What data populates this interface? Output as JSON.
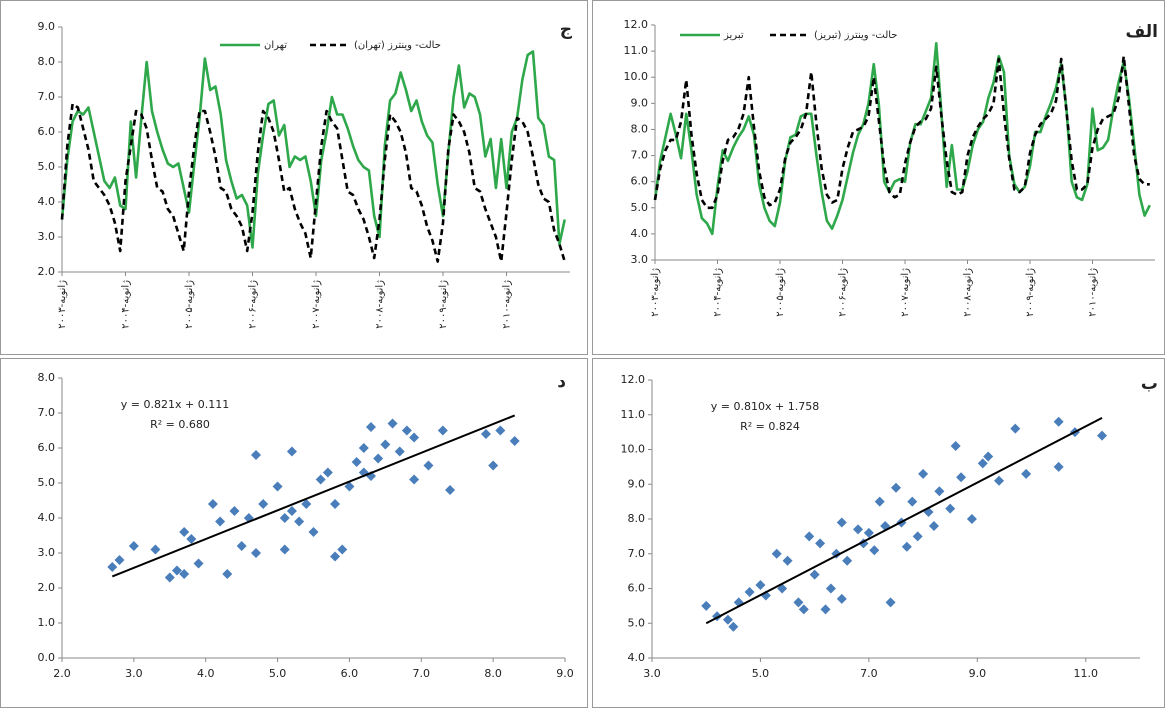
{
  "chart_data": [
    {
      "type": "line",
      "title": "ج",
      "categories": [
        "ژانویه-۲۰۰۳",
        null,
        null,
        null,
        null,
        null,
        null,
        null,
        null,
        null,
        null,
        null,
        "ژانویه-۲۰۰۴",
        null,
        null,
        null,
        null,
        null,
        null,
        null,
        null,
        null,
        null,
        null,
        "ژانویه-۲۰۰۵",
        null,
        null,
        null,
        null,
        null,
        null,
        null,
        null,
        null,
        null,
        null,
        "ژانویه-۲۰۰۶",
        null,
        null,
        null,
        null,
        null,
        null,
        null,
        null,
        null,
        null,
        null,
        "ژانویه-۲۰۰۷",
        null,
        null,
        null,
        null,
        null,
        null,
        null,
        null,
        null,
        null,
        null,
        "ژانویه-۲۰۰۸",
        null,
        null,
        null,
        null,
        null,
        null,
        null,
        null,
        null,
        null,
        null,
        "ژانویه-۲۰۰۹",
        null,
        null,
        null,
        null,
        null,
        null,
        null,
        null,
        null,
        null,
        null,
        "ژانویه-۲۰۱۰",
        null,
        null,
        null,
        null,
        null,
        null,
        null,
        null,
        null,
        null,
        null
      ],
      "series": [
        {
          "name": "تهران",
          "color": "#2ea84a",
          "line_style": "solid",
          "values": [
            3.5,
            5.2,
            6.3,
            6.6,
            6.5,
            6.7,
            6.0,
            5.3,
            4.6,
            4.4,
            4.7,
            3.9,
            3.8,
            6.3,
            4.7,
            6.4,
            8.0,
            6.6,
            6.0,
            5.5,
            5.1,
            5.0,
            5.1,
            4.4,
            3.7,
            5.1,
            6.4,
            8.1,
            7.2,
            7.3,
            6.5,
            5.2,
            4.6,
            4.1,
            4.2,
            3.9,
            2.7,
            4.8,
            5.9,
            6.8,
            6.9,
            5.9,
            6.2,
            5.0,
            5.3,
            5.2,
            5.3,
            4.6,
            3.6,
            5.2,
            6.0,
            7.0,
            6.5,
            6.5,
            6.1,
            5.6,
            5.2,
            5.0,
            4.9,
            3.6,
            3.0,
            5.6,
            6.9,
            7.1,
            7.7,
            7.2,
            6.6,
            6.9,
            6.3,
            5.9,
            5.7,
            4.5,
            3.6,
            5.4,
            7.0,
            7.9,
            6.7,
            7.1,
            7.0,
            6.5,
            5.3,
            5.8,
            4.4,
            5.8,
            4.4,
            6.0,
            6.4,
            7.5,
            8.2,
            8.3,
            6.4,
            6.2,
            5.3,
            5.2,
            2.8,
            3.5
          ]
        },
        {
          "name": "حالت- وینترز (تهران)",
          "color": "#000000",
          "line_style": "dashed",
          "values": [
            3.5,
            5.6,
            6.8,
            6.7,
            6.1,
            5.5,
            4.6,
            4.4,
            4.2,
            3.9,
            3.4,
            2.6,
            4.6,
            5.6,
            6.6,
            6.5,
            6.1,
            5.2,
            4.4,
            4.3,
            3.8,
            3.6,
            3.1,
            2.6,
            4.3,
            5.6,
            6.6,
            6.6,
            6.0,
            5.3,
            4.4,
            4.3,
            3.8,
            3.6,
            3.3,
            2.6,
            3.7,
            5.4,
            6.6,
            6.4,
            6.0,
            5.2,
            4.3,
            4.4,
            3.8,
            3.4,
            3.1,
            2.4,
            4.0,
            5.6,
            6.6,
            6.3,
            6.1,
            5.2,
            4.3,
            4.2,
            3.8,
            3.5,
            3.0,
            2.4,
            3.5,
            5.2,
            6.5,
            6.3,
            6.0,
            5.4,
            4.4,
            4.3,
            3.9,
            3.3,
            2.9,
            2.3,
            3.4,
            5.5,
            6.5,
            6.3,
            6.0,
            5.4,
            4.4,
            4.3,
            3.8,
            3.4,
            3.0,
            2.3,
            3.7,
            5.2,
            6.4,
            6.3,
            6.0,
            5.3,
            4.5,
            4.1,
            4.0,
            3.2,
            2.8,
            2.3
          ]
        }
      ],
      "ylim": [
        2,
        9
      ],
      "yticks": [
        {
          "value": 2,
          "label": "2.0"
        },
        {
          "value": 3,
          "label": "3.0"
        },
        {
          "value": 4,
          "label": "4.0"
        },
        {
          "value": 5,
          "label": "5.0"
        },
        {
          "value": 6,
          "label": "6.0"
        },
        {
          "value": 7,
          "label": "7.0"
        },
        {
          "value": 8,
          "label": "8.0"
        },
        {
          "value": 9,
          "label": "9.0"
        }
      ],
      "grid": false,
      "legend": "top"
    },
    {
      "type": "line",
      "title": "الف",
      "categories": [
        "ژانویه-۲۰۰۳",
        null,
        null,
        null,
        null,
        null,
        null,
        null,
        null,
        null,
        null,
        null,
        "ژانویه-۲۰۰۴",
        null,
        null,
        null,
        null,
        null,
        null,
        null,
        null,
        null,
        null,
        null,
        "ژانویه-۲۰۰۵",
        null,
        null,
        null,
        null,
        null,
        null,
        null,
        null,
        null,
        null,
        null,
        "ژانویه-۲۰۰۶",
        null,
        null,
        null,
        null,
        null,
        null,
        null,
        null,
        null,
        null,
        null,
        "ژانویه-۲۰۰۷",
        null,
        null,
        null,
        null,
        null,
        null,
        null,
        null,
        null,
        null,
        null,
        "ژانویه-۲۰۰۸",
        null,
        null,
        null,
        null,
        null,
        null,
        null,
        null,
        null,
        null,
        null,
        "ژانویه-۲۰۰۹",
        null,
        null,
        null,
        null,
        null,
        null,
        null,
        null,
        null,
        null,
        null,
        "ژانویه-۲۰۱۰",
        null,
        null,
        null,
        null,
        null,
        null,
        null,
        null,
        null,
        null,
        null
      ],
      "series": [
        {
          "name": "تبریز",
          "color": "#2ea84a",
          "line_style": "solid",
          "values": [
            5.3,
            6.8,
            7.7,
            8.6,
            7.8,
            6.9,
            8.6,
            7.2,
            5.5,
            4.6,
            4.4,
            4.0,
            5.8,
            7.2,
            6.8,
            7.3,
            7.7,
            8.0,
            8.5,
            7.8,
            5.9,
            5.0,
            4.5,
            4.3,
            5.2,
            6.8,
            7.7,
            7.8,
            8.5,
            8.6,
            8.6,
            7.0,
            5.6,
            4.5,
            4.2,
            4.7,
            5.3,
            6.2,
            7.1,
            7.8,
            8.2,
            9.0,
            10.5,
            8.9,
            6.0,
            5.6,
            6.0,
            6.1,
            6.0,
            7.5,
            8.2,
            8.2,
            8.7,
            9.2,
            11.3,
            8.6,
            5.8,
            7.4,
            5.7,
            5.7,
            6.4,
            7.4,
            8.0,
            8.3,
            9.2,
            9.8,
            10.8,
            10.2,
            7.0,
            5.9,
            5.6,
            5.8,
            6.6,
            7.9,
            7.9,
            8.5,
            9.0,
            9.6,
            10.5,
            8.8,
            6.0,
            5.4,
            5.3,
            5.9,
            8.8,
            7.2,
            7.3,
            7.6,
            8.8,
            9.8,
            10.6,
            9.2,
            7.4,
            5.5,
            4.7,
            5.1
          ]
        },
        {
          "name": "حالت- وینترز (تبریز)",
          "color": "#000000",
          "line_style": "dashed",
          "values": [
            5.3,
            6.5,
            7.2,
            7.6,
            7.6,
            8.3,
            9.9,
            7.8,
            6.3,
            5.3,
            5.0,
            5.0,
            5.5,
            6.8,
            7.6,
            7.7,
            8.0,
            8.6,
            10.0,
            8.1,
            6.4,
            5.4,
            5.1,
            5.2,
            5.7,
            6.9,
            7.5,
            7.7,
            8.0,
            8.6,
            10.2,
            8.2,
            6.5,
            5.5,
            5.2,
            5.3,
            6.5,
            7.3,
            7.9,
            8.0,
            8.1,
            8.5,
            10.0,
            8.3,
            6.6,
            5.6,
            5.4,
            5.5,
            6.7,
            7.5,
            8.1,
            8.3,
            8.4,
            8.8,
            10.4,
            8.5,
            6.8,
            5.6,
            5.5,
            5.6,
            7.0,
            7.7,
            8.1,
            8.4,
            8.6,
            9.0,
            10.7,
            8.6,
            6.9,
            5.7,
            5.6,
            5.8,
            7.1,
            7.8,
            8.2,
            8.4,
            8.6,
            9.1,
            10.7,
            8.7,
            6.8,
            5.7,
            5.7,
            5.9,
            7.3,
            8.0,
            8.4,
            8.5,
            8.6,
            9.2,
            10.8,
            8.9,
            7.0,
            6.1,
            5.9,
            5.9
          ]
        }
      ],
      "ylim": [
        3,
        12
      ],
      "yticks": [
        {
          "value": 3,
          "label": "3.0"
        },
        {
          "value": 4,
          "label": "4.0"
        },
        {
          "value": 5,
          "label": "5.0"
        },
        {
          "value": 6,
          "label": "6.0"
        },
        {
          "value": 7,
          "label": "7.0"
        },
        {
          "value": 8,
          "label": "8.0"
        },
        {
          "value": 9,
          "label": "9.0"
        },
        {
          "value": 10,
          "label": "10.0"
        },
        {
          "value": 11,
          "label": "11.0"
        },
        {
          "value": 12,
          "label": "12.0"
        }
      ],
      "grid": false,
      "legend": "top"
    },
    {
      "type": "scatter",
      "title": "د",
      "color": "#4a7ebb",
      "x": [
        2.7,
        2.8,
        3.0,
        3.3,
        3.5,
        3.6,
        3.7,
        3.7,
        3.8,
        3.9,
        4.1,
        4.2,
        4.3,
        4.4,
        4.5,
        4.6,
        4.7,
        4.7,
        4.8,
        5.0,
        5.1,
        5.1,
        5.2,
        5.2,
        5.3,
        5.4,
        5.5,
        5.6,
        5.7,
        5.8,
        5.8,
        5.9,
        6.0,
        6.1,
        6.2,
        6.2,
        6.3,
        6.3,
        6.4,
        6.5,
        6.6,
        6.7,
        6.8,
        6.9,
        6.9,
        7.1,
        7.3,
        7.4,
        7.9,
        8.0,
        8.1,
        8.3
      ],
      "values": [
        2.6,
        2.8,
        3.2,
        3.1,
        2.3,
        2.5,
        2.4,
        3.6,
        3.4,
        2.7,
        4.4,
        3.9,
        2.4,
        4.2,
        3.2,
        4.0,
        5.8,
        3.0,
        4.4,
        4.9,
        3.1,
        4.0,
        5.9,
        4.2,
        3.9,
        4.4,
        3.6,
        5.1,
        5.3,
        2.9,
        4.4,
        3.1,
        4.9,
        5.6,
        5.3,
        6.0,
        6.6,
        5.2,
        5.7,
        6.1,
        6.7,
        5.9,
        6.5,
        6.3,
        5.1,
        5.5,
        6.5,
        4.8,
        6.4,
        5.5,
        6.5,
        6.2
      ],
      "trendline": {
        "x": [
          2.7,
          8.3
        ],
        "values": [
          2.33,
          6.93
        ]
      },
      "equation": "y = 0.821x + 0.111",
      "r_squared": "R² = 0.680",
      "xlim": [
        2,
        9
      ],
      "xticks": [
        {
          "value": 2,
          "label": "2.0"
        },
        {
          "value": 3,
          "label": "3.0"
        },
        {
          "value": 4,
          "label": "4.0"
        },
        {
          "value": 5,
          "label": "5.0"
        },
        {
          "value": 6,
          "label": "6.0"
        },
        {
          "value": 7,
          "label": "7.0"
        },
        {
          "value": 8,
          "label": "8.0"
        },
        {
          "value": 9,
          "label": "9.0"
        }
      ],
      "ylim": [
        0,
        8
      ],
      "yticks": [
        {
          "value": 0,
          "label": "0.0"
        },
        {
          "value": 1,
          "label": "1.0"
        },
        {
          "value": 2,
          "label": "2.0"
        },
        {
          "value": 3,
          "label": "3.0"
        },
        {
          "value": 4,
          "label": "4.0"
        },
        {
          "value": 5,
          "label": "5.0"
        },
        {
          "value": 6,
          "label": "6.0"
        },
        {
          "value": 7,
          "label": "7.0"
        },
        {
          "value": 8,
          "label": "8.0"
        }
      ],
      "grid": false
    },
    {
      "type": "scatter",
      "title": "ب",
      "color": "#4a7ebb",
      "x": [
        4.0,
        4.2,
        4.4,
        4.5,
        4.6,
        4.8,
        5.0,
        5.1,
        5.3,
        5.4,
        5.5,
        5.7,
        5.8,
        5.9,
        6.0,
        6.1,
        6.2,
        6.3,
        6.4,
        6.5,
        6.5,
        6.6,
        6.8,
        6.9,
        7.0,
        7.1,
        7.2,
        7.3,
        7.4,
        7.5,
        7.6,
        7.7,
        7.8,
        7.9,
        8.0,
        8.1,
        8.2,
        8.3,
        8.5,
        8.6,
        8.7,
        8.9,
        9.1,
        9.2,
        9.4,
        9.7,
        9.9,
        10.5,
        10.5,
        10.8,
        11.3
      ],
      "values": [
        5.5,
        5.2,
        5.1,
        4.9,
        5.6,
        5.9,
        6.1,
        5.8,
        7.0,
        6.0,
        6.8,
        5.6,
        5.4,
        7.5,
        6.4,
        7.3,
        5.4,
        6.0,
        7.0,
        5.7,
        7.9,
        6.8,
        7.7,
        7.3,
        7.6,
        7.1,
        8.5,
        7.8,
        5.6,
        8.9,
        7.9,
        7.2,
        8.5,
        7.5,
        9.3,
        8.2,
        7.8,
        8.8,
        8.3,
        10.1,
        9.2,
        8.0,
        9.6,
        9.8,
        9.1,
        10.6,
        9.3,
        10.8,
        9.5,
        10.5,
        10.4
      ],
      "trendline": {
        "x": [
          4.0,
          11.3
        ],
        "values": [
          5.0,
          10.91
        ]
      },
      "equation": "y = 0.810x + 1.758",
      "r_squared": "R² = 0.824",
      "xlim": [
        3,
        12
      ],
      "xticks": [
        {
          "value": 3,
          "label": "3.0"
        },
        {
          "value": 5,
          "label": "5.0"
        },
        {
          "value": 7,
          "label": "7.0"
        },
        {
          "value": 9,
          "label": "9.0"
        },
        {
          "value": 11,
          "label": "11.0"
        }
      ],
      "ylim": [
        4,
        12
      ],
      "yticks": [
        {
          "value": 4,
          "label": "4.0"
        },
        {
          "value": 5,
          "label": "5.0"
        },
        {
          "value": 6,
          "label": "6.0"
        },
        {
          "value": 7,
          "label": "7.0"
        },
        {
          "value": 8,
          "label": "8.0"
        },
        {
          "value": 9,
          "label": "9.0"
        },
        {
          "value": 10,
          "label": "10.0"
        },
        {
          "value": 11,
          "label": "11.0"
        },
        {
          "value": 12,
          "label": "12.0"
        }
      ],
      "grid": false
    }
  ]
}
